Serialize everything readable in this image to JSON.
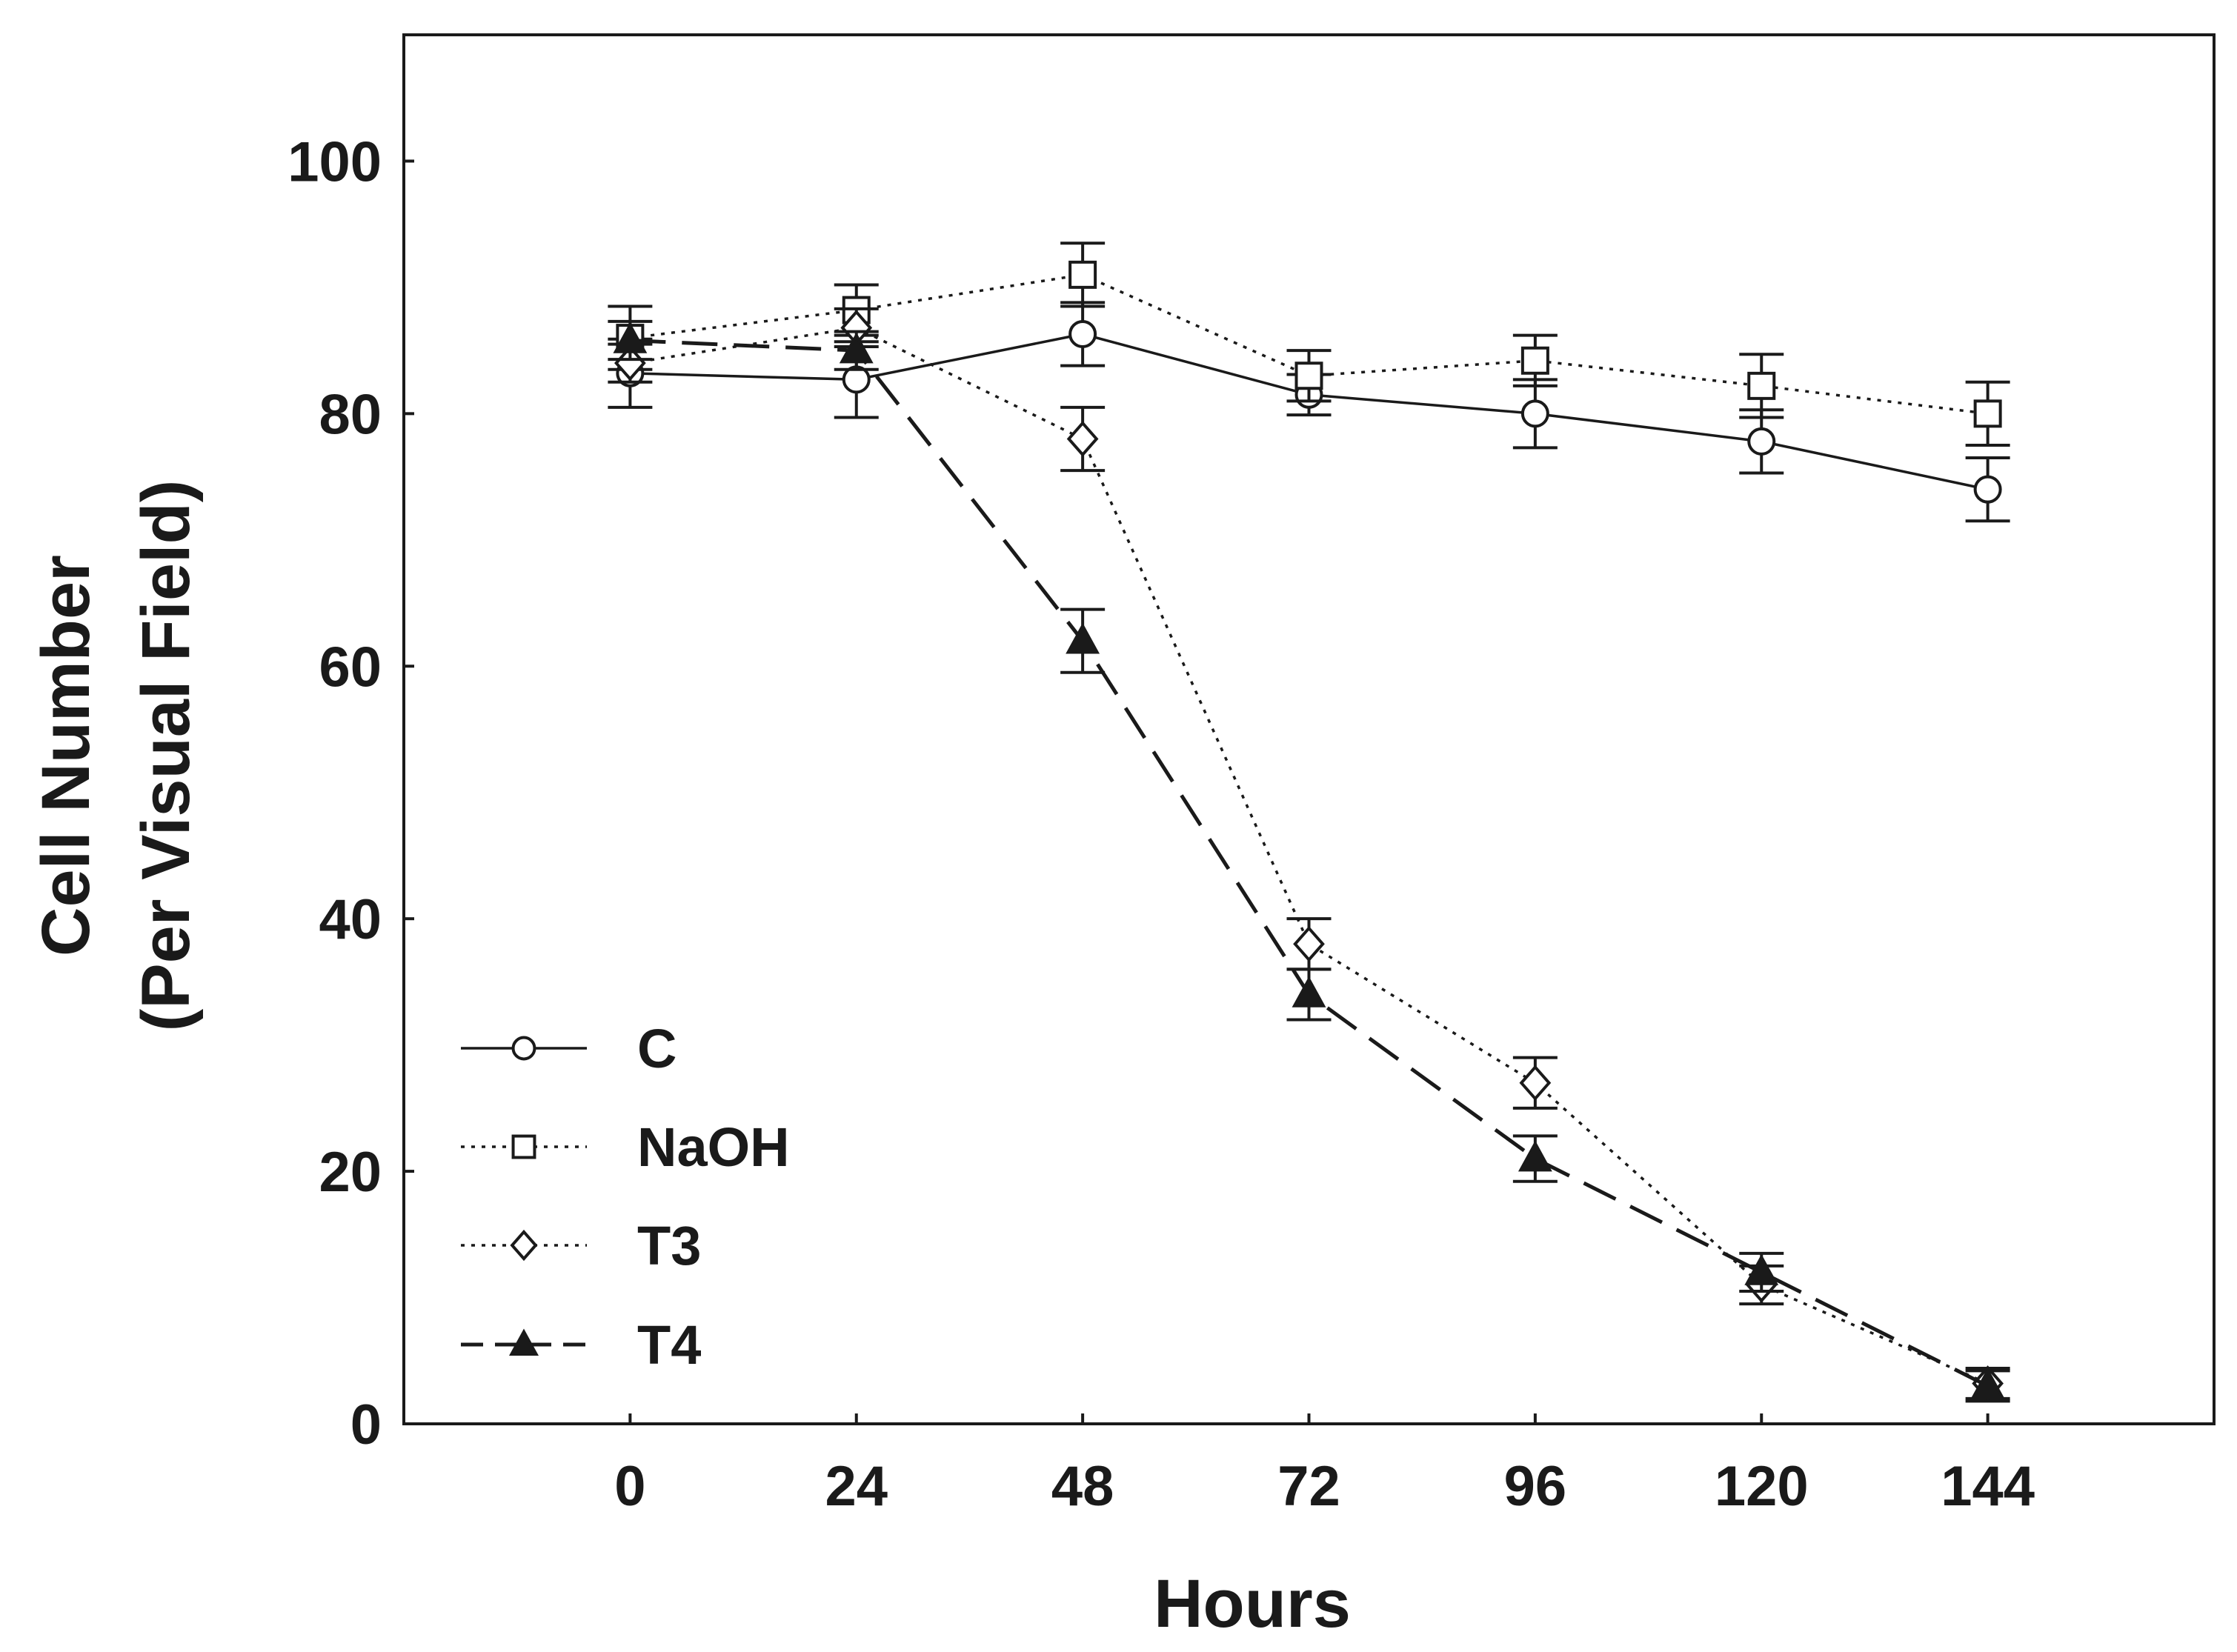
{
  "chart_data": {
    "type": "line",
    "title": "",
    "xlabel": "Hours",
    "ylabel_lines": [
      "Cell Number",
      "(Per Visual Field)"
    ],
    "x": [
      0,
      24,
      48,
      72,
      96,
      120,
      144
    ],
    "x_tick_labels": [
      "0",
      "24",
      "48",
      "72",
      "96",
      "120",
      "144"
    ],
    "y_ticks": [
      0,
      20,
      40,
      60,
      80,
      100
    ],
    "y_tick_labels": [
      "0",
      "20",
      "40",
      "60",
      "80",
      "100"
    ],
    "xlim": [
      -24,
      168
    ],
    "ylim": [
      0,
      110
    ],
    "grid": false,
    "legend_position": "bottom-left",
    "series": [
      {
        "name": "C",
        "marker": "circle",
        "line_style": "solid",
        "values": [
          83.2,
          82.7,
          86.3,
          81.5,
          80.0,
          77.8,
          74.0
        ],
        "errors": [
          2.7,
          3.0,
          2.5,
          1.6,
          2.7,
          2.5,
          2.5
        ]
      },
      {
        "name": "NaOH",
        "marker": "square",
        "line_style": "dotted",
        "values": [
          86.0,
          88.2,
          91.0,
          83.0,
          84.2,
          82.2,
          80.0
        ],
        "errors": [
          2.5,
          2.0,
          2.5,
          2.0,
          2.0,
          2.5,
          2.5
        ]
      },
      {
        "name": "T3",
        "marker": "diamond",
        "line_style": "dotted",
        "values": [
          84.0,
          86.8,
          78.0,
          38.0,
          27.0,
          11.0,
          3.2
        ],
        "errors": [
          1.5,
          1.5,
          2.5,
          2.0,
          2.0,
          1.5,
          1.2
        ]
      },
      {
        "name": "T4",
        "marker": "triangle",
        "line_style": "dashed",
        "values": [
          85.8,
          85.0,
          62.0,
          34.0,
          21.0,
          12.0,
          3.0
        ],
        "errors": [
          1.5,
          1.5,
          2.5,
          2.0,
          1.8,
          1.5,
          1.2
        ]
      }
    ]
  },
  "colors": {
    "ink": "#1a1a1a",
    "background": "#ffffff"
  }
}
